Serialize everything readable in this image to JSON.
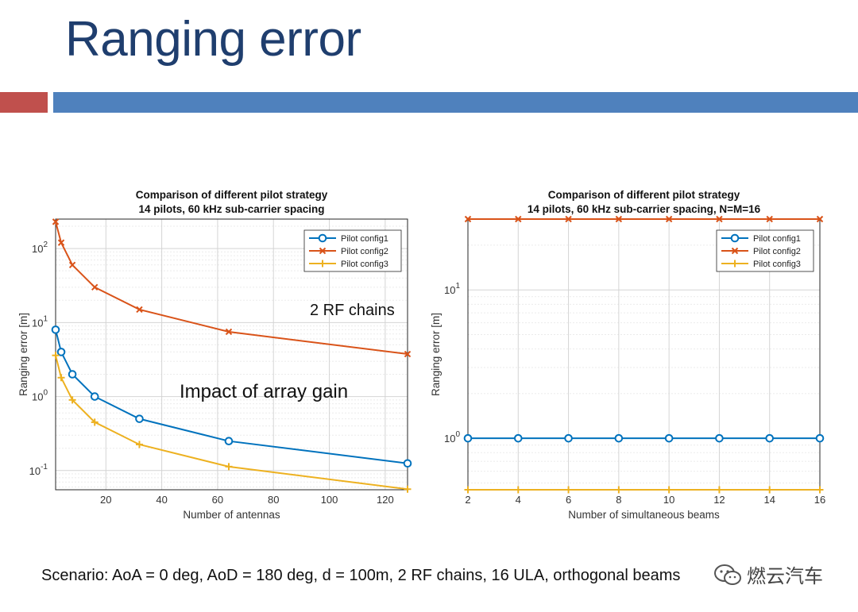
{
  "slide": {
    "title": "Ranging error",
    "scenario": "Scenario: AoA = 0 deg, AoD = 180 deg, d = 100m, 2 RF chains, 16 ULA, orthogonal beams",
    "watermark": "燃云汽车",
    "accent_red": "#c0504d",
    "accent_blue": "#4f81bd",
    "title_color": "#1f3e6e"
  },
  "chart_data": [
    {
      "type": "line",
      "title": "Comparison of different pilot strategy",
      "subtitle": "14 pilots, 60 kHz sub-carrier spacing",
      "xlabel": "Number of antennas",
      "ylabel": "Ranging error [m]",
      "x": [
        2,
        4,
        8,
        16,
        32,
        64,
        128
      ],
      "xlim": [
        2,
        128
      ],
      "xticks": [
        20,
        40,
        60,
        80,
        100,
        120
      ],
      "ylim": [
        0.055,
        250
      ],
      "yscale": "log",
      "yticks": [
        {
          "value": 0.1,
          "base": "10",
          "exp": "-1"
        },
        {
          "value": 1,
          "base": "10",
          "exp": "0"
        },
        {
          "value": 10,
          "base": "10",
          "exp": "1"
        },
        {
          "value": 100,
          "base": "10",
          "exp": "2"
        }
      ],
      "grid": true,
      "legend_position": "top-right",
      "series": [
        {
          "name": "Pilot config1",
          "marker": "o",
          "color": "#0072bd",
          "values": [
            8,
            4,
            2,
            1,
            0.5,
            0.25,
            0.125
          ]
        },
        {
          "name": "Pilot config2",
          "marker": "x",
          "color": "#d95319",
          "values": [
            230,
            120,
            60,
            30,
            15,
            7.5,
            3.75
          ]
        },
        {
          "name": "Pilot config3",
          "marker": "+",
          "color": "#edb120",
          "values": [
            3.6,
            1.8,
            0.9,
            0.45,
            0.225,
            0.113,
            0.056
          ]
        }
      ],
      "annotations": [
        "2 RF chains",
        "Impact of array gain"
      ]
    },
    {
      "type": "line",
      "title": "Comparison of different pilot strategy",
      "subtitle": "14 pilots, 60 kHz sub-carrier spacing, N=M=16",
      "xlabel": "Number of simultaneous beams",
      "ylabel": "Ranging error [m]",
      "x": [
        2,
        4,
        6,
        8,
        10,
        12,
        14,
        16
      ],
      "xlim": [
        2,
        16
      ],
      "xticks": [
        2,
        4,
        6,
        8,
        10,
        12,
        14,
        16
      ],
      "ylim": [
        0.45,
        30
      ],
      "yscale": "log",
      "yticks": [
        {
          "value": 1,
          "base": "10",
          "exp": "0"
        },
        {
          "value": 10,
          "base": "10",
          "exp": "1"
        }
      ],
      "grid": true,
      "legend_position": "top-right",
      "series": [
        {
          "name": "Pilot config1",
          "marker": "o",
          "color": "#0072bd",
          "values": [
            1,
            1,
            1,
            1,
            1,
            1,
            1,
            1
          ]
        },
        {
          "name": "Pilot config2",
          "marker": "x",
          "color": "#d95319",
          "values": [
            30,
            30,
            30,
            30,
            30,
            30,
            30,
            30
          ]
        },
        {
          "name": "Pilot config3",
          "marker": "+",
          "color": "#edb120",
          "values": [
            0.45,
            0.45,
            0.45,
            0.45,
            0.45,
            0.45,
            0.45,
            0.45
          ]
        }
      ]
    }
  ]
}
